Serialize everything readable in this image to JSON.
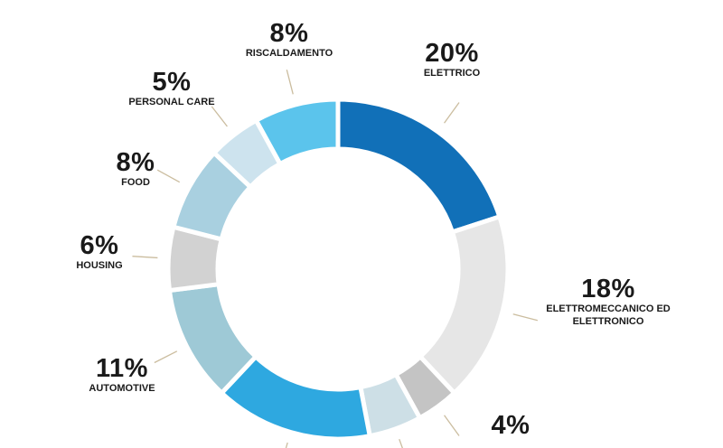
{
  "chart_data": {
    "type": "pie",
    "donut": true,
    "slices": [
      {
        "label": "ELETTRICO",
        "value": 20,
        "pct": "20%",
        "color": "#1170b8"
      },
      {
        "label": "ELETTROMECCANICO ED ELETTRONICO",
        "value": 18,
        "pct": "18%",
        "color": "#e6e6e6"
      },
      {
        "label": "",
        "value": 4,
        "pct": "4%",
        "color": "#c4c4c4"
      },
      {
        "label": "",
        "value": 5,
        "pct": "",
        "color": "#cddfe6"
      },
      {
        "label": "",
        "value": 15,
        "pct": "",
        "color": "#2ea8e0"
      },
      {
        "label": "AUTOMOTIVE",
        "value": 11,
        "pct": "11%",
        "color": "#9ec9d6"
      },
      {
        "label": "HOUSING",
        "value": 6,
        "pct": "6%",
        "color": "#d2d2d2"
      },
      {
        "label": "FOOD",
        "value": 8,
        "pct": "8%",
        "color": "#a9d0e0"
      },
      {
        "label": "PERSONAL CARE",
        "value": 5,
        "pct": "5%",
        "color": "#cde3ee"
      },
      {
        "label": "RISCALDAMENTO",
        "value": 8,
        "pct": "8%",
        "color": "#5bc4ec"
      }
    ]
  }
}
